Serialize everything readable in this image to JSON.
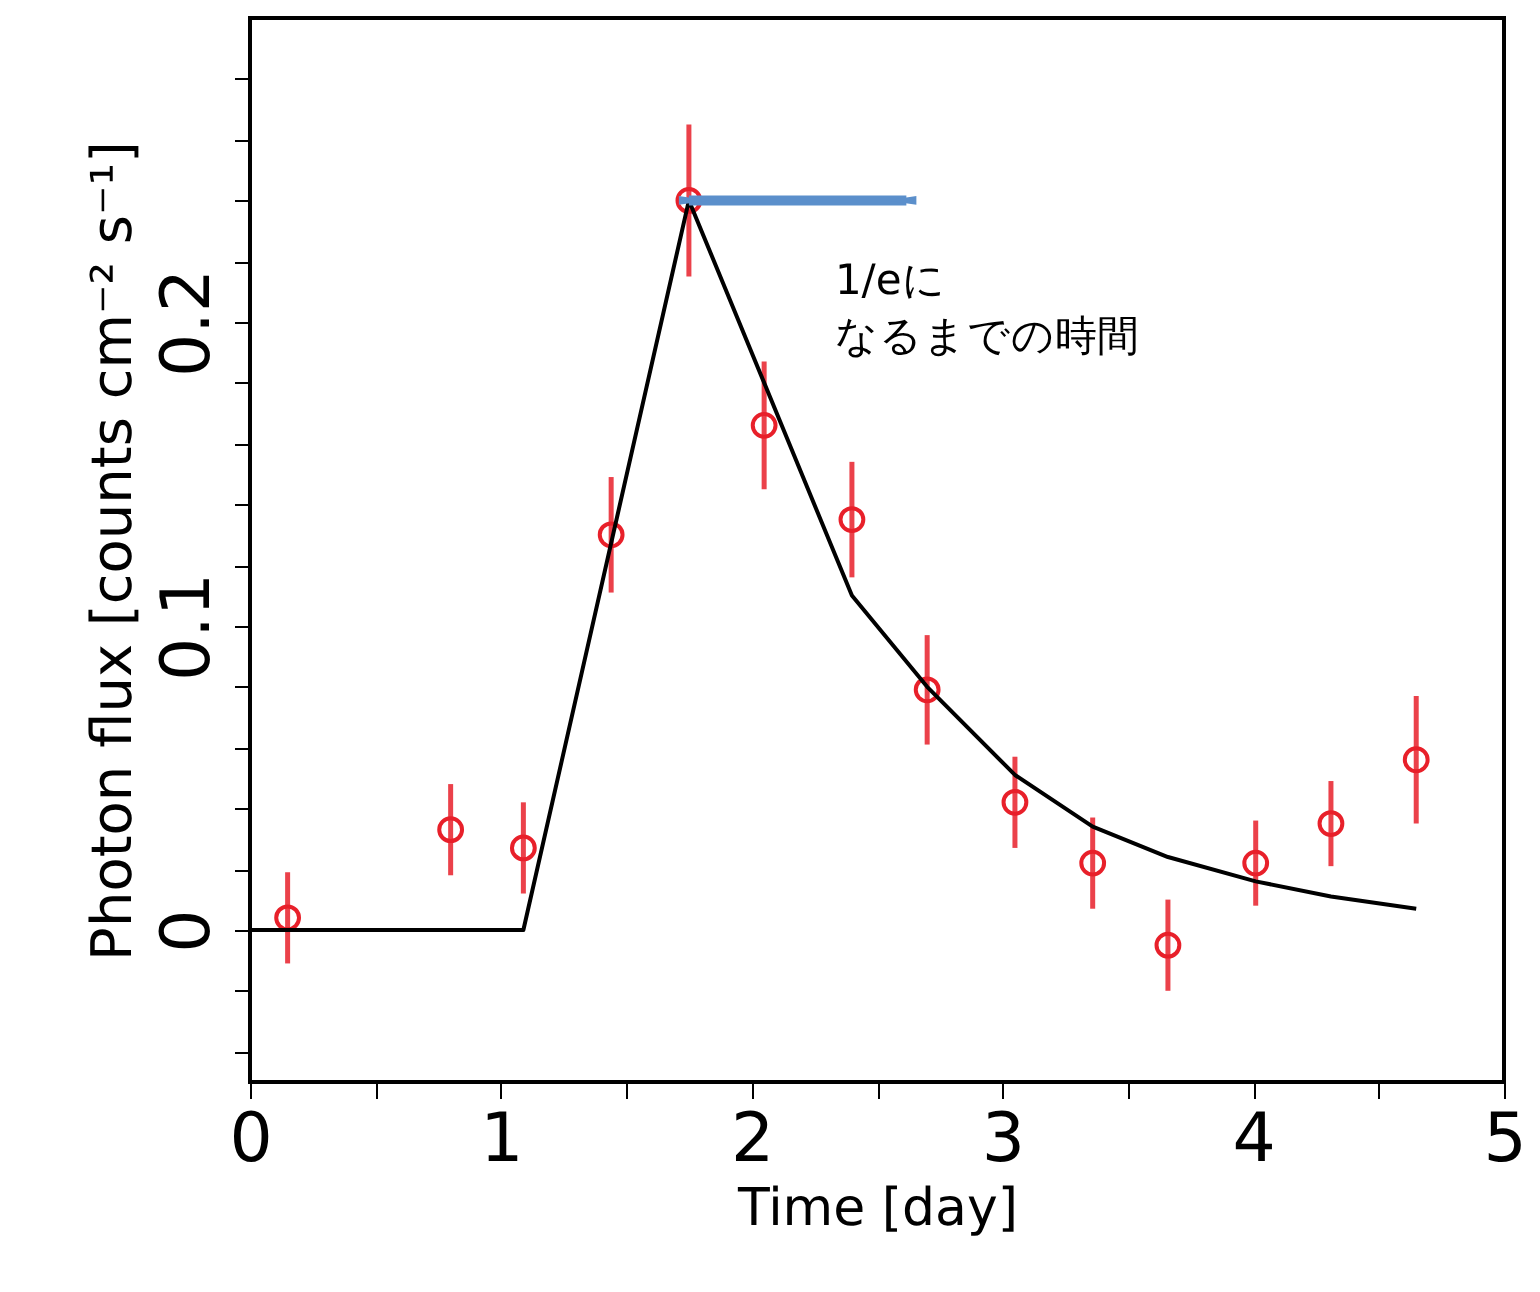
{
  "chart_data": {
    "type": "scatter",
    "xlabel": "Time [day]",
    "ylabel": "Photon flux [counts cm⁻² s⁻¹]",
    "xlim": [
      0,
      5
    ],
    "ylim": [
      -0.05,
      0.3
    ],
    "xticks": [
      0,
      {
        "value": 0.5,
        "label": null
      },
      1,
      {
        "value": 1.5,
        "label": null
      },
      2,
      {
        "value": 2.5,
        "label": null
      },
      3,
      {
        "value": 3.5,
        "label": null
      },
      4,
      {
        "value": 4.5,
        "label": null
      },
      5
    ],
    "yticks": [
      {
        "value": -0.04,
        "label": null
      },
      {
        "value": -0.02,
        "label": null
      },
      0,
      {
        "value": 0.02,
        "label": null
      },
      {
        "value": 0.04,
        "label": null
      },
      {
        "value": 0.06,
        "label": null
      },
      {
        "value": 0.08,
        "label": null
      },
      0.1,
      {
        "value": 0.12,
        "label": null
      },
      {
        "value": 0.14,
        "label": null
      },
      {
        "value": 0.16,
        "label": null
      },
      {
        "value": 0.18,
        "label": null
      },
      0.2,
      {
        "value": 0.22,
        "label": null
      },
      {
        "value": 0.24,
        "label": null
      },
      {
        "value": 0.26,
        "label": null
      },
      {
        "value": 0.28,
        "label": null
      }
    ],
    "grid": false,
    "marker": "circle",
    "series": [
      {
        "color": "#e8202a",
        "x": [
          0.15,
          0.8,
          1.09,
          1.44,
          1.75,
          2.05,
          2.4,
          2.7,
          3.05,
          3.36,
          3.66,
          4.01,
          4.31,
          4.65
        ],
        "values": [
          0.004,
          0.033,
          0.027,
          0.13,
          0.24,
          0.166,
          0.135,
          0.079,
          0.042,
          0.022,
          -0.005,
          0.022,
          0.035,
          0.056
        ],
        "errors": [
          0.015,
          0.015,
          0.015,
          0.019,
          0.025,
          0.021,
          0.019,
          0.018,
          0.015,
          0.015,
          0.015,
          0.014,
          0.014,
          0.021
        ]
      },
      {
        "type": "line",
        "color": "#000000",
        "line_style": "solid",
        "marker": "none",
        "x": [
          0,
          1.09,
          1.75,
          2.4,
          2.7,
          3.05,
          3.36,
          3.66,
          4.01,
          4.31,
          4.65
        ],
        "values": [
          0,
          0,
          0.24,
          0.11,
          0.08,
          0.051,
          0.034,
          0.024,
          0.016,
          0.011,
          0.007
        ]
      }
    ],
    "annotations": [
      "1/eに",
      "なるまでの時間"
    ]
  }
}
